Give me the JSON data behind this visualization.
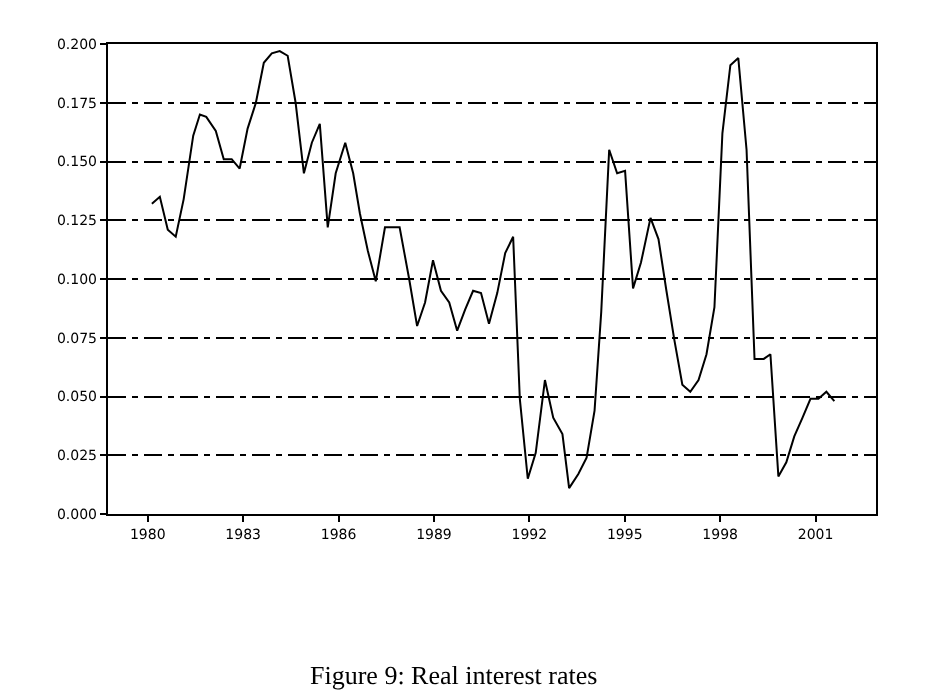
{
  "chart_data": {
    "type": "line",
    "title": "Figure 9: Real interest rates",
    "x": [
      1980.13,
      1980.38,
      1980.63,
      1980.88,
      1981.13,
      1981.43,
      1981.64,
      1981.84,
      1982.14,
      1982.39,
      1982.64,
      1982.89,
      1983.14,
      1983.4,
      1983.65,
      1983.9,
      1984.15,
      1984.4,
      1984.65,
      1984.91,
      1985.16,
      1985.41,
      1985.66,
      1985.91,
      1986.21,
      1986.46,
      1986.67,
      1986.92,
      1987.17,
      1987.46,
      1987.92,
      1988.22,
      1988.47,
      1988.72,
      1988.97,
      1989.22,
      1989.48,
      1989.73,
      1989.98,
      1990.23,
      1990.48,
      1990.73,
      1990.99,
      1991.24,
      1991.49,
      1991.7,
      1991.95,
      1992.2,
      1992.49,
      1992.75,
      1993.04,
      1993.25,
      1993.54,
      1993.8,
      1994.05,
      1994.26,
      1994.51,
      1994.76,
      1995.01,
      1995.26,
      1995.51,
      1995.81,
      1996.06,
      1996.31,
      1996.56,
      1996.81,
      1997.06,
      1997.32,
      1997.57,
      1997.82,
      1998.07,
      1998.32,
      1998.57,
      1998.83,
      1999.08,
      1999.37,
      1999.58,
      1999.83,
      2000.08,
      2000.33,
      2000.59,
      2000.84,
      2001.09,
      2001.34,
      2001.59
    ],
    "series": [
      {
        "color": "#000000",
        "values": [
          0.132,
          0.135,
          0.121,
          0.118,
          0.134,
          0.161,
          0.17,
          0.169,
          0.163,
          0.151,
          0.151,
          0.147,
          0.164,
          0.175,
          0.192,
          0.196,
          0.197,
          0.195,
          0.175,
          0.145,
          0.158,
          0.166,
          0.122,
          0.145,
          0.158,
          0.145,
          0.128,
          0.112,
          0.099,
          0.122,
          0.122,
          0.1,
          0.08,
          0.09,
          0.108,
          0.095,
          0.09,
          0.078,
          0.087,
          0.095,
          0.094,
          0.081,
          0.094,
          0.111,
          0.118,
          0.049,
          0.015,
          0.026,
          0.057,
          0.041,
          0.034,
          0.011,
          0.017,
          0.024,
          0.044,
          0.086,
          0.155,
          0.145,
          0.146,
          0.096,
          0.107,
          0.126,
          0.117,
          0.095,
          0.074,
          0.055,
          0.052,
          0.057,
          0.068,
          0.088,
          0.162,
          0.191,
          0.194,
          0.155,
          0.066,
          0.066,
          0.068,
          0.016,
          0.022,
          0.033,
          0.041,
          0.049,
          0.049,
          0.052,
          0.048
        ]
      }
    ],
    "xlim": [
      1978.75,
      2002.9
    ],
    "xticks": [
      1980,
      1983,
      1986,
      1989,
      1992,
      1995,
      1998,
      2001
    ],
    "ylim": [
      0,
      0.2
    ],
    "yticks": [
      {
        "value": 0,
        "label": "0.000"
      },
      {
        "value": 0.025,
        "label": "0.025"
      },
      {
        "value": 0.05,
        "label": "0.050"
      },
      {
        "value": 0.075,
        "label": "0.075"
      },
      {
        "value": 0.1,
        "label": "0.100"
      },
      {
        "value": 0.125,
        "label": "0.125"
      },
      {
        "value": 0.15,
        "label": "0.150"
      },
      {
        "value": 0.175,
        "label": "0.175"
      },
      {
        "value": 0.2,
        "label": "0.200"
      }
    ],
    "grid": "y",
    "legend": false,
    "marker": "none",
    "line_style": "solid"
  }
}
